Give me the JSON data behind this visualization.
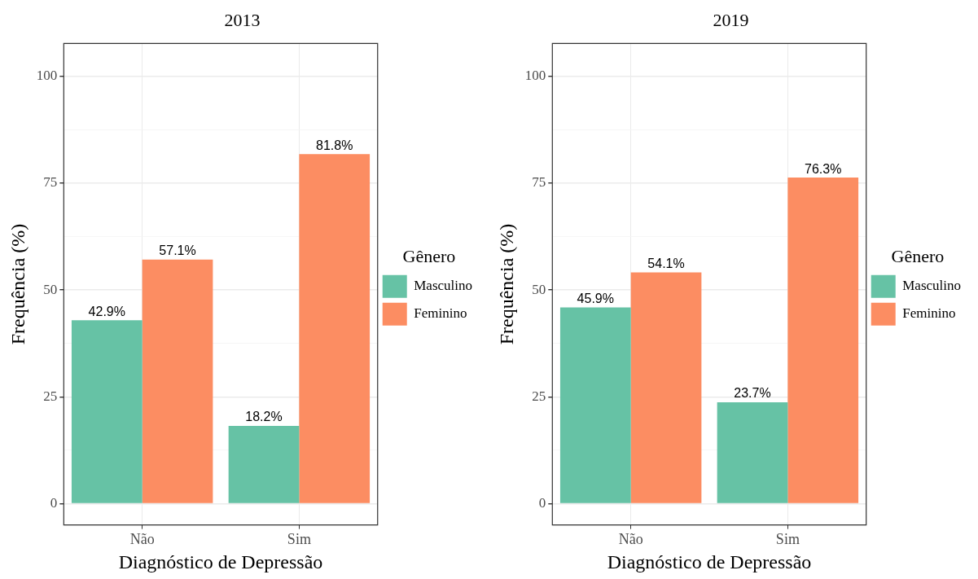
{
  "chart_data": [
    {
      "type": "bar",
      "title": "2013",
      "xlabel": "Diagnóstico de Depressão",
      "ylabel": "Frequência (%)",
      "legend_title": "Gênero",
      "legend": "right",
      "grid": true,
      "categories": [
        "Não",
        "Sim"
      ],
      "series": [
        {
          "name": "Masculino",
          "color": "#66c2a5",
          "values": [
            42.9,
            18.2
          ],
          "value_labels": [
            "42.9%",
            "18.2%"
          ]
        },
        {
          "name": "Feminino",
          "color": "#fc8d62",
          "values": [
            57.1,
            81.8
          ],
          "value_labels": [
            "57.1%",
            "81.8%"
          ]
        }
      ],
      "ylim": [
        -5,
        107.7
      ],
      "yticks": [
        0,
        {
          "value": 12.5,
          "label": null
        },
        25,
        {
          "value": 37.5,
          "label": null
        },
        50,
        {
          "value": 62.5,
          "label": null
        },
        75,
        {
          "value": 87.5,
          "label": null
        },
        100
      ]
    },
    {
      "type": "bar",
      "title": "2019",
      "xlabel": "Diagnóstico de Depressão",
      "ylabel": "Frequência (%)",
      "legend_title": "Gênero",
      "legend": "right",
      "grid": true,
      "categories": [
        "Não",
        "Sim"
      ],
      "series": [
        {
          "name": "Masculino",
          "color": "#66c2a5",
          "values": [
            45.9,
            23.7
          ],
          "value_labels": [
            "45.9%",
            "23.7%"
          ]
        },
        {
          "name": "Feminino",
          "color": "#fc8d62",
          "values": [
            54.1,
            76.3
          ],
          "value_labels": [
            "54.1%",
            "76.3%"
          ]
        }
      ],
      "ylim": [
        -5,
        107.7
      ],
      "yticks": [
        0,
        {
          "value": 12.5,
          "label": null
        },
        25,
        {
          "value": 37.5,
          "label": null
        },
        50,
        {
          "value": 62.5,
          "label": null
        },
        75,
        {
          "value": 87.5,
          "label": null
        },
        100
      ]
    }
  ]
}
